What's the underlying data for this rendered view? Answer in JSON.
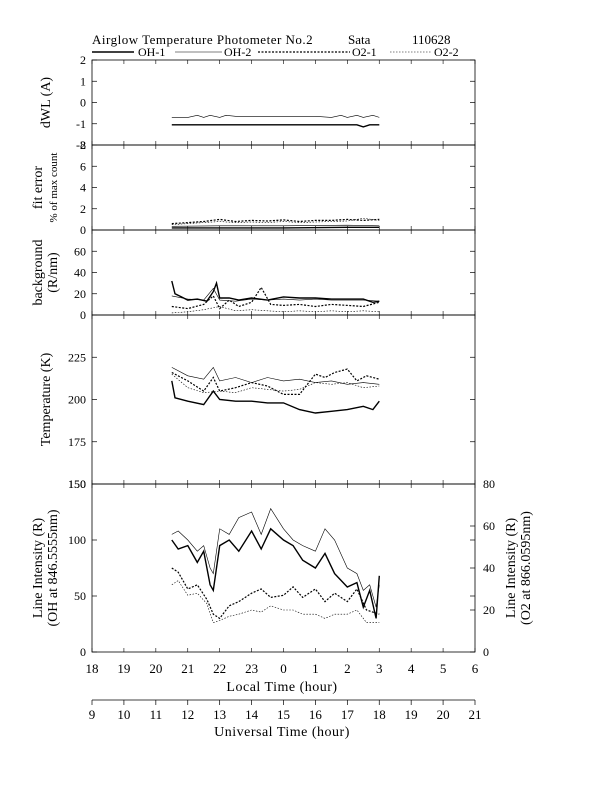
{
  "header": {
    "title": "Airglow Temperature Photometer No.2",
    "site": "Sata",
    "date": "110628",
    "legend": [
      {
        "name": "OH-1",
        "style": "solid"
      },
      {
        "name": "OH-2",
        "style": "thin"
      },
      {
        "name": "O2-1",
        "style": "dotted-bold"
      },
      {
        "name": "O2-2",
        "style": "dotted"
      }
    ]
  },
  "chart_data": [
    {
      "type": "line",
      "ylabel": "dWL (A)",
      "ylim": [
        -2,
        2
      ],
      "yticks": [
        "-2",
        "-1",
        "0",
        "1",
        "2"
      ],
      "series": [
        {
          "name": "OH-1",
          "x": [
            20.5,
            21.0,
            22.0,
            23.0,
            24.0,
            25.0,
            26.0,
            26.3,
            26.5,
            26.7,
            27.0
          ],
          "values": [
            -1.05,
            -1.05,
            -1.05,
            -1.05,
            -1.05,
            -1.05,
            -1.05,
            -1.05,
            -1.15,
            -1.05,
            -1.05
          ]
        },
        {
          "name": "OH-2",
          "x": [
            20.5,
            21.0,
            21.3,
            21.5,
            21.7,
            22.0,
            22.2,
            22.5,
            23.0,
            24.0,
            25.0,
            25.5,
            25.8,
            26.0,
            26.3,
            26.5,
            26.8,
            27.0
          ],
          "values": [
            -0.7,
            -0.7,
            -0.6,
            -0.7,
            -0.6,
            -0.7,
            -0.6,
            -0.65,
            -0.65,
            -0.65,
            -0.65,
            -0.7,
            -0.6,
            -0.7,
            -0.6,
            -0.7,
            -0.6,
            -0.7
          ]
        }
      ]
    },
    {
      "type": "line",
      "ylabel": "fit error",
      "ylabel2": "% of max count",
      "ylim": [
        0,
        8
      ],
      "yticks": [
        "0",
        "2",
        "4",
        "6",
        "8"
      ],
      "series": [
        {
          "name": "OH-1",
          "x": [
            20.5,
            22.0,
            24.0,
            26.0,
            27.0
          ],
          "values": [
            0.2,
            0.2,
            0.2,
            0.25,
            0.25
          ]
        },
        {
          "name": "OH-2",
          "x": [
            20.5,
            22.0,
            24.0,
            26.0,
            27.0
          ],
          "values": [
            0.35,
            0.4,
            0.4,
            0.45,
            0.4
          ]
        },
        {
          "name": "O2-1",
          "x": [
            20.5,
            21.0,
            21.5,
            22.0,
            22.5,
            23.0,
            23.5,
            24.0,
            24.5,
            25.0,
            25.5,
            26.0,
            26.5,
            27.0
          ],
          "values": [
            0.6,
            0.7,
            0.8,
            1.0,
            0.8,
            0.9,
            0.85,
            0.95,
            0.8,
            0.9,
            0.9,
            1.0,
            0.9,
            1.0
          ]
        },
        {
          "name": "O2-2",
          "x": [
            20.5,
            21.0,
            21.5,
            22.0,
            22.5,
            23.0,
            23.5,
            24.0,
            24.5,
            25.0,
            25.5,
            26.0,
            26.5,
            27.0
          ],
          "values": [
            0.5,
            0.6,
            0.7,
            0.8,
            0.7,
            0.75,
            0.7,
            0.8,
            0.7,
            0.75,
            0.8,
            0.85,
            1.1,
            0.9
          ]
        }
      ]
    },
    {
      "type": "line",
      "ylabel": "background",
      "ylabel2": "(R/nm)",
      "ylim": [
        0,
        80
      ],
      "yticks": [
        "0",
        "20",
        "40",
        "60"
      ],
      "series": [
        {
          "name": "OH-1",
          "x": [
            20.5,
            20.6,
            20.8,
            21.0,
            21.3,
            21.6,
            21.8,
            21.9,
            22.0,
            22.3,
            22.6,
            23.0,
            23.5,
            24.0,
            24.5,
            25.0,
            25.5,
            26.0,
            26.5,
            26.8,
            27.0
          ],
          "values": [
            32,
            20,
            17,
            14,
            15,
            13,
            22,
            30,
            16,
            16,
            14,
            16,
            14,
            17,
            16,
            16,
            15,
            15,
            15,
            12,
            13
          ]
        },
        {
          "name": "OH-2",
          "x": [
            20.5,
            21.0,
            21.5,
            21.8,
            22.0,
            22.5,
            23.0,
            23.5,
            24.0,
            24.5,
            25.0,
            25.5,
            26.0,
            26.5,
            27.0
          ],
          "values": [
            18,
            15,
            14,
            25,
            14,
            13,
            15,
            14,
            15,
            14,
            15,
            14,
            14,
            14,
            13
          ]
        },
        {
          "name": "O2-1",
          "x": [
            20.5,
            21.0,
            21.5,
            21.8,
            22.0,
            22.3,
            22.6,
            23.0,
            23.3,
            23.6,
            24.0,
            24.5,
            25.0,
            25.5,
            26.0,
            26.5,
            27.0
          ],
          "values": [
            8,
            6,
            10,
            18,
            6,
            14,
            8,
            12,
            26,
            10,
            9,
            10,
            8,
            10,
            9,
            8,
            12
          ]
        },
        {
          "name": "O2-2",
          "x": [
            20.5,
            21.0,
            21.5,
            22.0,
            22.5,
            23.0,
            23.5,
            24.0,
            24.5,
            25.0,
            25.5,
            26.0,
            26.5,
            27.0
          ],
          "values": [
            2,
            3,
            5,
            8,
            4,
            5,
            4,
            3,
            4,
            3,
            4,
            3,
            4,
            3
          ]
        }
      ]
    },
    {
      "type": "line",
      "ylabel": "Temperature (K)",
      "ylim": [
        150,
        250
      ],
      "yticks": [
        "150",
        "175",
        "200",
        "225"
      ],
      "series": [
        {
          "name": "OH-1",
          "x": [
            20.5,
            20.6,
            21.0,
            21.5,
            21.8,
            22.0,
            22.5,
            23.0,
            23.5,
            24.0,
            24.5,
            25.0,
            25.5,
            26.0,
            26.5,
            26.8,
            27.0
          ],
          "values": [
            211,
            201,
            199,
            197,
            205,
            200,
            199,
            199,
            198,
            198,
            194,
            192,
            193,
            194,
            196,
            194,
            199
          ]
        },
        {
          "name": "OH-2",
          "x": [
            20.5,
            21.0,
            21.5,
            21.8,
            22.0,
            22.5,
            23.0,
            23.5,
            24.0,
            24.5,
            25.0,
            25.5,
            26.0,
            26.5,
            27.0
          ],
          "values": [
            219,
            214,
            212,
            219,
            211,
            213,
            210,
            213,
            211,
            212,
            210,
            211,
            209,
            210,
            209
          ]
        },
        {
          "name": "O2-1",
          "x": [
            20.5,
            21.0,
            21.5,
            21.8,
            22.0,
            22.5,
            23.0,
            23.5,
            24.0,
            24.5,
            25.0,
            25.3,
            25.6,
            26.0,
            26.3,
            26.6,
            27.0
          ],
          "values": [
            216,
            211,
            205,
            213,
            205,
            207,
            210,
            208,
            203,
            203,
            215,
            213,
            216,
            218,
            211,
            214,
            212
          ]
        },
        {
          "name": "O2-2",
          "x": [
            20.5,
            21.0,
            21.5,
            22.0,
            22.5,
            23.0,
            23.5,
            24.0,
            24.5,
            25.0,
            25.5,
            26.0,
            26.5,
            27.0
          ],
          "values": [
            215,
            207,
            204,
            205,
            204,
            207,
            206,
            205,
            206,
            210,
            209,
            210,
            207,
            208
          ]
        }
      ]
    },
    {
      "type": "line",
      "ylabel": "Line Intensity (R)",
      "ylabel2": "(OH at 846.5555nm)",
      "ylim": [
        0,
        150
      ],
      "yticks": [
        "0",
        "50",
        "100",
        "150"
      ],
      "y2label": "Line Intensity (R)",
      "y2label2": "(O2 at 866.0595nm)",
      "y2lim": [
        0,
        80
      ],
      "y2ticks": [
        "0",
        "20",
        "40",
        "60",
        "80"
      ],
      "xlabel": "Local Time (hour)",
      "xticks": [
        "18",
        "19",
        "20",
        "21",
        "22",
        "23",
        "0",
        "1",
        "2",
        "3",
        "4",
        "5",
        "6"
      ],
      "x2label": "Universal Time (hour)",
      "x2ticks": [
        "9",
        "10",
        "11",
        "12",
        "13",
        "14",
        "15",
        "16",
        "17",
        "18",
        "19",
        "20",
        "21"
      ],
      "xlim": [
        18,
        30
      ],
      "series": [
        {
          "name": "OH-1",
          "axis": "left",
          "x": [
            20.5,
            20.7,
            21.0,
            21.3,
            21.5,
            21.7,
            21.8,
            22.0,
            22.3,
            22.6,
            23.0,
            23.3,
            23.6,
            24.0,
            24.3,
            24.6,
            25.0,
            25.3,
            25.6,
            26.0,
            26.3,
            26.5,
            26.7,
            26.9,
            27.0
          ],
          "values": [
            100,
            92,
            95,
            80,
            90,
            60,
            55,
            95,
            100,
            90,
            108,
            92,
            110,
            100,
            95,
            82,
            75,
            88,
            70,
            58,
            62,
            40,
            55,
            30,
            68
          ]
        },
        {
          "name": "OH-2",
          "axis": "left",
          "x": [
            20.5,
            20.7,
            21.0,
            21.3,
            21.5,
            21.7,
            21.8,
            22.0,
            22.3,
            22.6,
            23.0,
            23.3,
            23.6,
            24.0,
            24.3,
            24.6,
            25.0,
            25.3,
            25.6,
            26.0,
            26.3,
            26.5,
            26.7,
            26.9,
            27.0
          ],
          "values": [
            105,
            108,
            100,
            90,
            95,
            75,
            70,
            110,
            105,
            120,
            125,
            105,
            128,
            110,
            100,
            95,
            90,
            110,
            100,
            75,
            70,
            55,
            60,
            40,
            60
          ]
        },
        {
          "name": "O2-1",
          "axis": "right",
          "x": [
            20.5,
            20.7,
            21.0,
            21.3,
            21.6,
            21.8,
            22.0,
            22.3,
            22.6,
            23.0,
            23.3,
            23.6,
            24.0,
            24.3,
            24.6,
            25.0,
            25.3,
            25.6,
            26.0,
            26.3,
            26.6,
            27.0
          ],
          "values": [
            40,
            38,
            30,
            32,
            25,
            18,
            16,
            22,
            24,
            28,
            30,
            26,
            27,
            31,
            26,
            30,
            24,
            28,
            24,
            30,
            20,
            18
          ]
        },
        {
          "name": "O2-2",
          "axis": "right",
          "x": [
            20.5,
            20.7,
            21.0,
            21.3,
            21.6,
            21.8,
            22.0,
            22.3,
            22.6,
            23.0,
            23.3,
            23.6,
            24.0,
            24.3,
            24.6,
            25.0,
            25.3,
            25.6,
            26.0,
            26.3,
            26.6,
            27.0
          ],
          "values": [
            32,
            34,
            27,
            28,
            23,
            14,
            15,
            17,
            18,
            20,
            19,
            22,
            20,
            20,
            18,
            18,
            16,
            18,
            18,
            20,
            14,
            14
          ]
        }
      ]
    }
  ]
}
